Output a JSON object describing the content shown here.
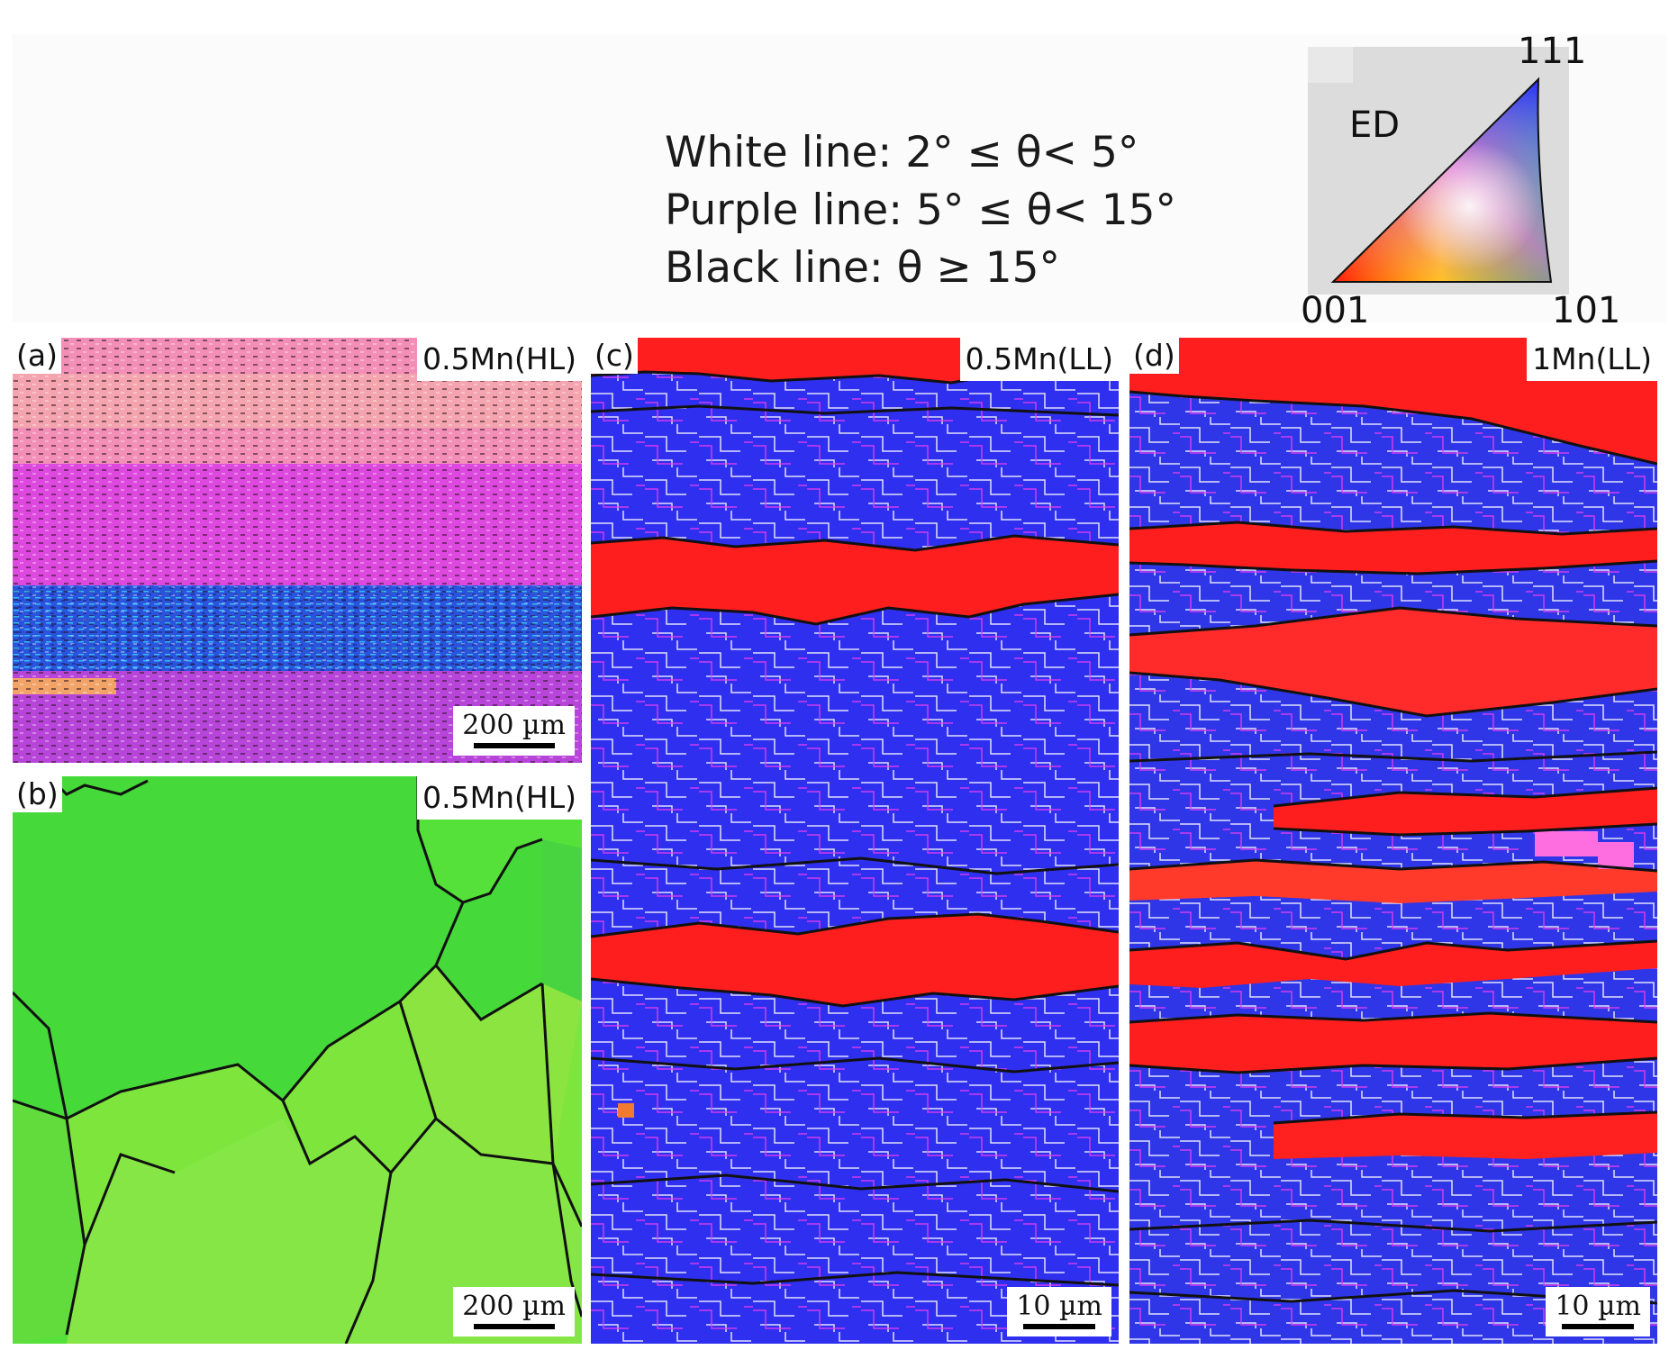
{
  "legend": {
    "white_line": "White line: 2° ≤ θ< 5°",
    "purple_line": "Purple line: 5° ≤ θ< 15°",
    "black_line": "Black line: θ ≥ 15°"
  },
  "ipf_key": {
    "direction": "ED",
    "corner_001": "001",
    "corner_101": "101",
    "corner_111": "111"
  },
  "panels": {
    "a": {
      "tag": "(a)",
      "title": "0.5Mn(HL)",
      "scale": "200 µm"
    },
    "b": {
      "tag": "(b)",
      "title": "0.5Mn(HL)",
      "scale": "200 µm"
    },
    "c": {
      "tag": "(c)",
      "title": "0.5Mn(LL)",
      "scale": "10 µm"
    },
    "d": {
      "tag": "(d)",
      "title": "1Mn(LL)",
      "scale": "10 µm"
    }
  },
  "colors": {
    "red_grain": "#ff1e1e",
    "blue_grain": "#2f2ff0",
    "green_grain": "#4fe640",
    "magenta": "#ff40ff",
    "cyan": "#25c8ff"
  }
}
